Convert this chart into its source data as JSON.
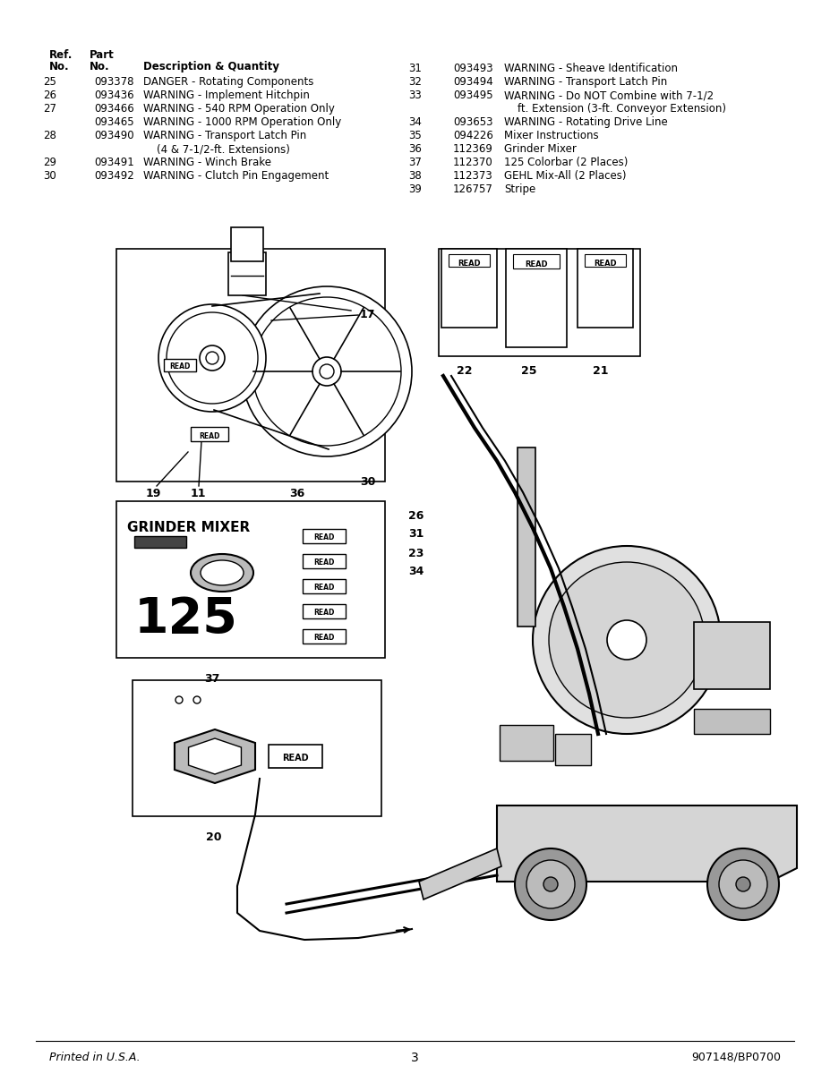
{
  "bg_color": "#ffffff",
  "title_footer_left": "Printed in U.S.A.",
  "title_footer_center": "3",
  "title_footer_right": "907148/BP0700",
  "font_size_table": 8.5,
  "rows_left": [
    [
      "25",
      "093378",
      "DANGER - Rotating Components"
    ],
    [
      "26",
      "093436",
      "WARNING - Implement Hitchpin"
    ],
    [
      "27",
      "093466",
      "WARNING - 540 RPM Operation Only"
    ],
    [
      "",
      "093465",
      "WARNING - 1000 RPM Operation Only"
    ],
    [
      "28",
      "093490",
      "WARNING - Transport Latch Pin"
    ],
    [
      "",
      "",
      "    (4 & 7-1/2-ft. Extensions)"
    ],
    [
      "29",
      "093491",
      "WARNING - Winch Brake"
    ],
    [
      "30",
      "093492",
      "WARNING - Clutch Pin Engagement"
    ]
  ],
  "rows_right": [
    [
      "31",
      "093493",
      "WARNING - Sheave Identification"
    ],
    [
      "32",
      "093494",
      "WARNING - Transport Latch Pin"
    ],
    [
      "33",
      "093495",
      "WARNING - Do NOT Combine with 7-1/2"
    ],
    [
      "",
      "",
      "    ft. Extension (3-ft. Conveyor Extension)"
    ],
    [
      "34",
      "093653",
      "WARNING - Rotating Drive Line"
    ],
    [
      "35",
      "094226",
      "Mixer Instructions"
    ],
    [
      "36",
      "112369",
      "Grinder Mixer"
    ],
    [
      "37",
      "112370",
      "125 Colorbar (2 Places)"
    ],
    [
      "38",
      "112373",
      "GEHL Mix-All (2 Places)"
    ],
    [
      "39",
      "126757",
      "Stripe"
    ]
  ]
}
